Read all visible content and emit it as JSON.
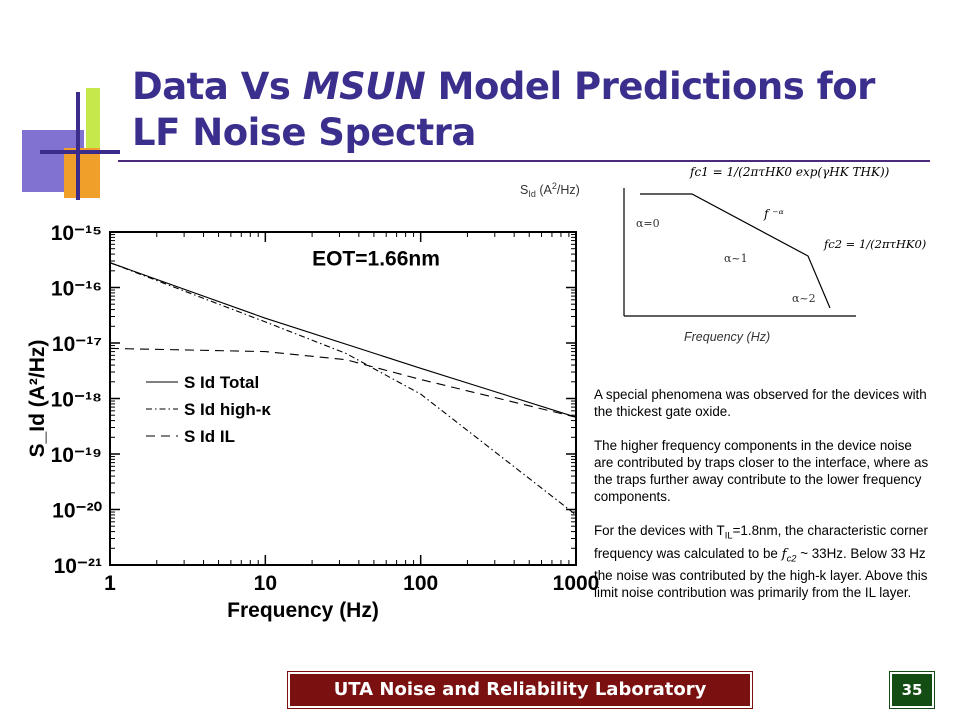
{
  "title": {
    "part1": "Data Vs ",
    "model": "MSUN",
    "part2": " Model Predictions for LF Noise Spectra"
  },
  "chart_data": {
    "type": "line",
    "title": "",
    "annotation": "EOT=1.66nm",
    "xlabel": "Frequency (Hz)",
    "ylabel": "S_Id (A²/Hz)",
    "x_scale": "log",
    "y_scale": "log",
    "xlim": [
      1,
      1000
    ],
    "ylim": [
      1e-21,
      1e-15
    ],
    "x_ticks": [
      "1",
      "10",
      "100",
      "1000"
    ],
    "y_ticks": [
      "10⁻¹⁵",
      "10⁻¹⁶",
      "10⁻¹⁷",
      "10⁻¹⁸",
      "10⁻¹⁹",
      "10⁻²⁰",
      "10⁻²¹"
    ],
    "grid": false,
    "legend_position": "center-left",
    "series": [
      {
        "name": "S Id Total",
        "style": "solid",
        "x": [
          1,
          10,
          100,
          1000
        ],
        "values": [
          2.8e-16,
          2.8e-17,
          3.5e-18,
          4.6e-19
        ]
      },
      {
        "name": "S Id high-κ",
        "style": "dash-dot",
        "x": [
          1,
          10,
          33,
          100,
          1000
        ],
        "values": [
          2.8e-16,
          2.4e-17,
          6.5e-18,
          1.2e-18,
          8e-21
        ]
      },
      {
        "name": "S Id IL",
        "style": "dashed",
        "x": [
          1,
          10,
          33,
          100,
          1000
        ],
        "values": [
          8e-18,
          7e-18,
          5e-18,
          2.2e-18,
          4.6e-19
        ]
      }
    ]
  },
  "inset": {
    "ylabel_main": "S",
    "ylabel_sub": "Id",
    "ylabel_rest": " (A",
    "ylabel_sup": "2",
    "ylabel_end": "/Hz)",
    "xlabel": "Frequency (Hz)",
    "alpha0": "α=0",
    "alpha1": "α~1",
    "alpha2": "α~2",
    "f_alpha": "f ⁻ᵅ",
    "fc1_formula": "fc1 = 1/(2πτHK0 exp(γHK THK))",
    "fc2_formula": "fc2 = 1/(2πτHK0)"
  },
  "notes": {
    "p1": "A special phenomena was observed for the devices with the thickest gate oxide.",
    "p2": "The higher frequency components in the device noise are contributed by traps closer to the interface, where as the traps further away contribute to the lower frequency components.",
    "p3_a": "For the devices with T",
    "p3_sub": "IL",
    "p3_b": "=1.8nm, the characteristic corner frequency was calculated to be ",
    "p3_fc": "f",
    "p3_fcsub": "c2",
    "p3_c": " ~ 33Hz. Below 33 Hz the noise was contributed by the high-k layer. Above this limit noise contribution was primarily from the IL layer."
  },
  "footer": {
    "lab": "UTA Noise and Reliability Laboratory",
    "page": "35"
  },
  "colors": {
    "title": "#3a2f8c",
    "footer_bg": "#7a1010",
    "page_bg": "#144d14",
    "deco_purple": "#5a3fa8",
    "deco_lime": "#c6e84a",
    "deco_orange": "#f0a02a",
    "deco_indigo": "#3b2b8a"
  }
}
